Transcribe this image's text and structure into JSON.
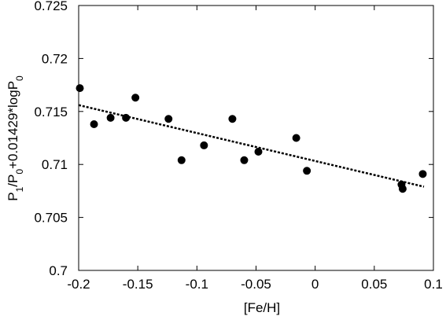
{
  "chart_data": {
    "type": "scatter",
    "title": "",
    "xlabel": "[Fe/H]",
    "ylabel": "P1/P0+0.01429*logP0",
    "ylabel_parts": [
      {
        "t": "P",
        "sub": false
      },
      {
        "t": "1",
        "sub": true
      },
      {
        "t": "/P",
        "sub": false
      },
      {
        "t": "0",
        "sub": true
      },
      {
        "t": "+0.01429*logP",
        "sub": false
      },
      {
        "t": "0",
        "sub": true
      }
    ],
    "xlim": [
      -0.2,
      0.1
    ],
    "ylim": [
      0.7,
      0.725
    ],
    "xticks": [
      -0.2,
      -0.15,
      -0.1,
      -0.05,
      0,
      0.05,
      0.1
    ],
    "xtick_labels": [
      "-0.2",
      "-0.15",
      "-0.1",
      "-0.05",
      "0",
      "0.05",
      "0.1"
    ],
    "yticks": [
      0.7,
      0.705,
      0.71,
      0.715,
      0.72,
      0.725
    ],
    "ytick_labels": [
      "0.7",
      "0.705",
      "0.71",
      "0.715",
      "0.72",
      "0.725"
    ],
    "grid": false,
    "legend": false,
    "series": [
      {
        "points": [
          {
            "x": -0.199,
            "y": 0.7172
          },
          {
            "x": -0.187,
            "y": 0.7138
          },
          {
            "x": -0.173,
            "y": 0.7144
          },
          {
            "x": -0.16,
            "y": 0.7144
          },
          {
            "x": -0.152,
            "y": 0.7163
          },
          {
            "x": -0.124,
            "y": 0.7143
          },
          {
            "x": -0.113,
            "y": 0.7104
          },
          {
            "x": -0.094,
            "y": 0.7118
          },
          {
            "x": -0.07,
            "y": 0.7143
          },
          {
            "x": -0.06,
            "y": 0.7104
          },
          {
            "x": -0.048,
            "y": 0.7112
          },
          {
            "x": -0.016,
            "y": 0.7125
          },
          {
            "x": -0.007,
            "y": 0.7094
          },
          {
            "x": 0.073,
            "y": 0.7081
          },
          {
            "x": 0.074,
            "y": 0.7077
          },
          {
            "x": 0.091,
            "y": 0.7091
          }
        ]
      }
    ],
    "fit_line": {
      "x": [
        -0.2,
        0.092
      ],
      "y": [
        0.7156,
        0.7079
      ],
      "style": "dashed"
    },
    "colors": {
      "points": "#000000",
      "line": "#000000",
      "axes": "#000000"
    }
  }
}
